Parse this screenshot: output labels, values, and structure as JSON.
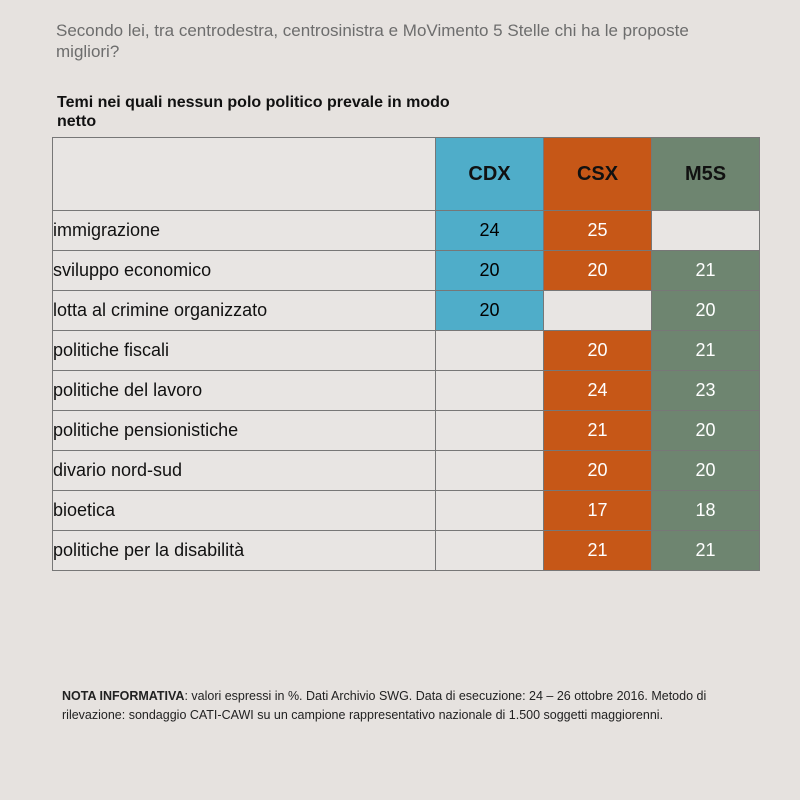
{
  "question": "Secondo lei, tra centrodestra, centrosinistra e MoVimento 5 Stelle chi ha le proposte migliori?",
  "chart_data": {
    "type": "table",
    "title": "Temi nei quali nessun polo politico prevale in modo netto",
    "columns": [
      "CDX",
      "CSX",
      "M5S"
    ],
    "colors": {
      "CDX": "#4fadc9",
      "CSX": "#c65717",
      "M5S": "#6e8570",
      "empty": "#e8e5e3"
    },
    "rows": [
      {
        "label": "immigrazione",
        "values": [
          24,
          25,
          null
        ]
      },
      {
        "label": "sviluppo economico",
        "values": [
          20,
          20,
          21
        ]
      },
      {
        "label": "lotta al crimine organizzato",
        "values": [
          20,
          null,
          20
        ]
      },
      {
        "label": "politiche fiscali",
        "values": [
          null,
          20,
          21
        ]
      },
      {
        "label": "politiche del lavoro",
        "values": [
          null,
          24,
          23
        ]
      },
      {
        "label": "politiche pensionistiche",
        "values": [
          null,
          21,
          20
        ]
      },
      {
        "label": "divario nord-sud",
        "values": [
          null,
          20,
          20
        ]
      },
      {
        "label": "bioetica",
        "values": [
          null,
          17,
          18
        ]
      },
      {
        "label": "politiche per la disabilità",
        "values": [
          null,
          21,
          21
        ]
      }
    ]
  },
  "note": {
    "label": "NOTA INFORMATIVA",
    "text": ": valori espressi in %. Dati Archivio SWG. Data di esecuzione: 24 – 26 ottobre 2016. Metodo di rilevazione: sondaggio CATI-CAWI su un campione rappresentativo nazionale di 1.500 soggetti maggiorenni."
  }
}
